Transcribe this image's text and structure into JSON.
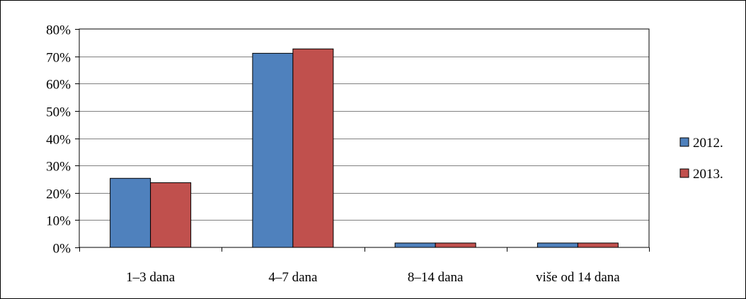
{
  "chart_data": {
    "type": "bar",
    "categories": [
      "1–3 dana",
      "4–7 dana",
      "8–14 dana",
      "više od 14 dana"
    ],
    "series": [
      {
        "name": "2012.",
        "color": "#4F81BD",
        "values": [
          25.3,
          71.1,
          1.6,
          1.6
        ]
      },
      {
        "name": "2013.",
        "color": "#C0504D",
        "values": [
          23.7,
          72.7,
          1.6,
          1.6
        ]
      }
    ],
    "yticks": [
      "0%",
      "10%",
      "20%",
      "30%",
      "40%",
      "50%",
      "60%",
      "70%",
      "80%"
    ],
    "ylim": [
      0,
      80
    ],
    "unit": "%",
    "grid": true,
    "legend_position": "right"
  }
}
